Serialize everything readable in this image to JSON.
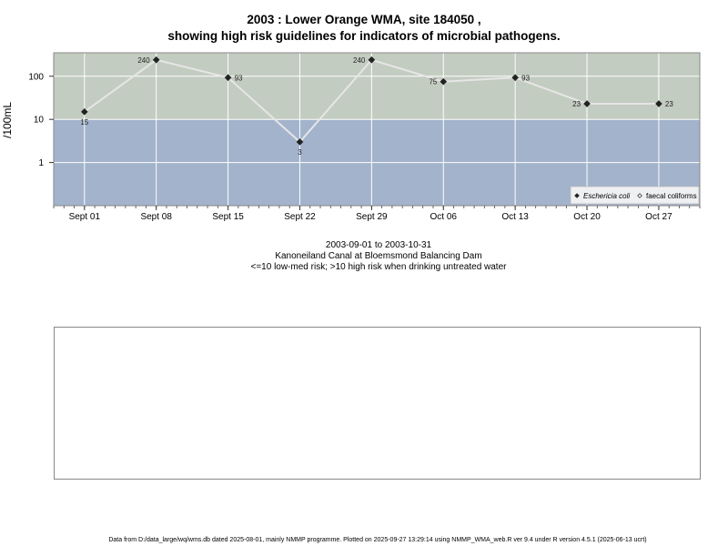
{
  "title_line1": "2003 : Lower Orange WMA, site 184050 ,",
  "title_line2": "showing high risk guidelines for indicators of microbial pathogens.",
  "caption_line1": "2003-09-01 to 2003-10-31",
  "caption_line2": "Kanoneiland Canal at Bloemsmond Balancing Dam",
  "caption_line3": "<=10 low-med risk; >10 high risk when drinking untreated water",
  "footer": "Data from D:/data_large/wq/wms.db dated 2025-08-01, mainly NMMP programme. Plotted on 2025-09-27 13:29:14 using NMMP_WMA_web.R ver 9.4 under R version 4.5.1 (2025-06-13 ucrt)",
  "chart_data": {
    "type": "line",
    "ylabel": "/100mL",
    "yscale": "log",
    "ylim": [
      0.1,
      350
    ],
    "xlim": [
      "2003-08-29",
      "2003-10-31"
    ],
    "y_ticks": [
      1,
      10,
      100
    ],
    "y_tick_labels": [
      "1",
      "10",
      "100"
    ],
    "x_ticks": [
      "2003-09-01",
      "2003-09-08",
      "2003-09-15",
      "2003-09-22",
      "2003-09-29",
      "2003-10-06",
      "2003-10-13",
      "2003-10-20",
      "2003-10-27"
    ],
    "x_tick_labels": [
      "Sept 01",
      "Sept 08",
      "Sept 15",
      "Sept 22",
      "Sept 29",
      "Oct 06",
      "Oct 13",
      "Oct 20",
      "Oct 27"
    ],
    "threshold": 10,
    "high_risk_color": "#c3ccc0",
    "low_risk_color": "#a3b3cc",
    "line_color": "#e6e6e6",
    "grid": true,
    "legend_position": "bottom-right",
    "series": [
      {
        "name": "Eschericia coli",
        "marker": "filled-diamond",
        "x": [
          "2003-09-01",
          "2003-09-08",
          "2003-09-15",
          "2003-09-22",
          "2003-09-29",
          "2003-10-06",
          "2003-10-13",
          "2003-10-20",
          "2003-10-27"
        ],
        "y": [
          15,
          240,
          93,
          3,
          240,
          75,
          93,
          23,
          23
        ],
        "labels": [
          "15",
          "240",
          "93",
          "3",
          "240",
          "75",
          "93",
          "23",
          "23"
        ],
        "label_pos": [
          "below",
          "left",
          "right",
          "below",
          "left",
          "left",
          "right",
          "left",
          "right"
        ]
      },
      {
        "name": "faecal coliforms",
        "marker": "open-diamond",
        "x": [],
        "y": []
      }
    ]
  }
}
